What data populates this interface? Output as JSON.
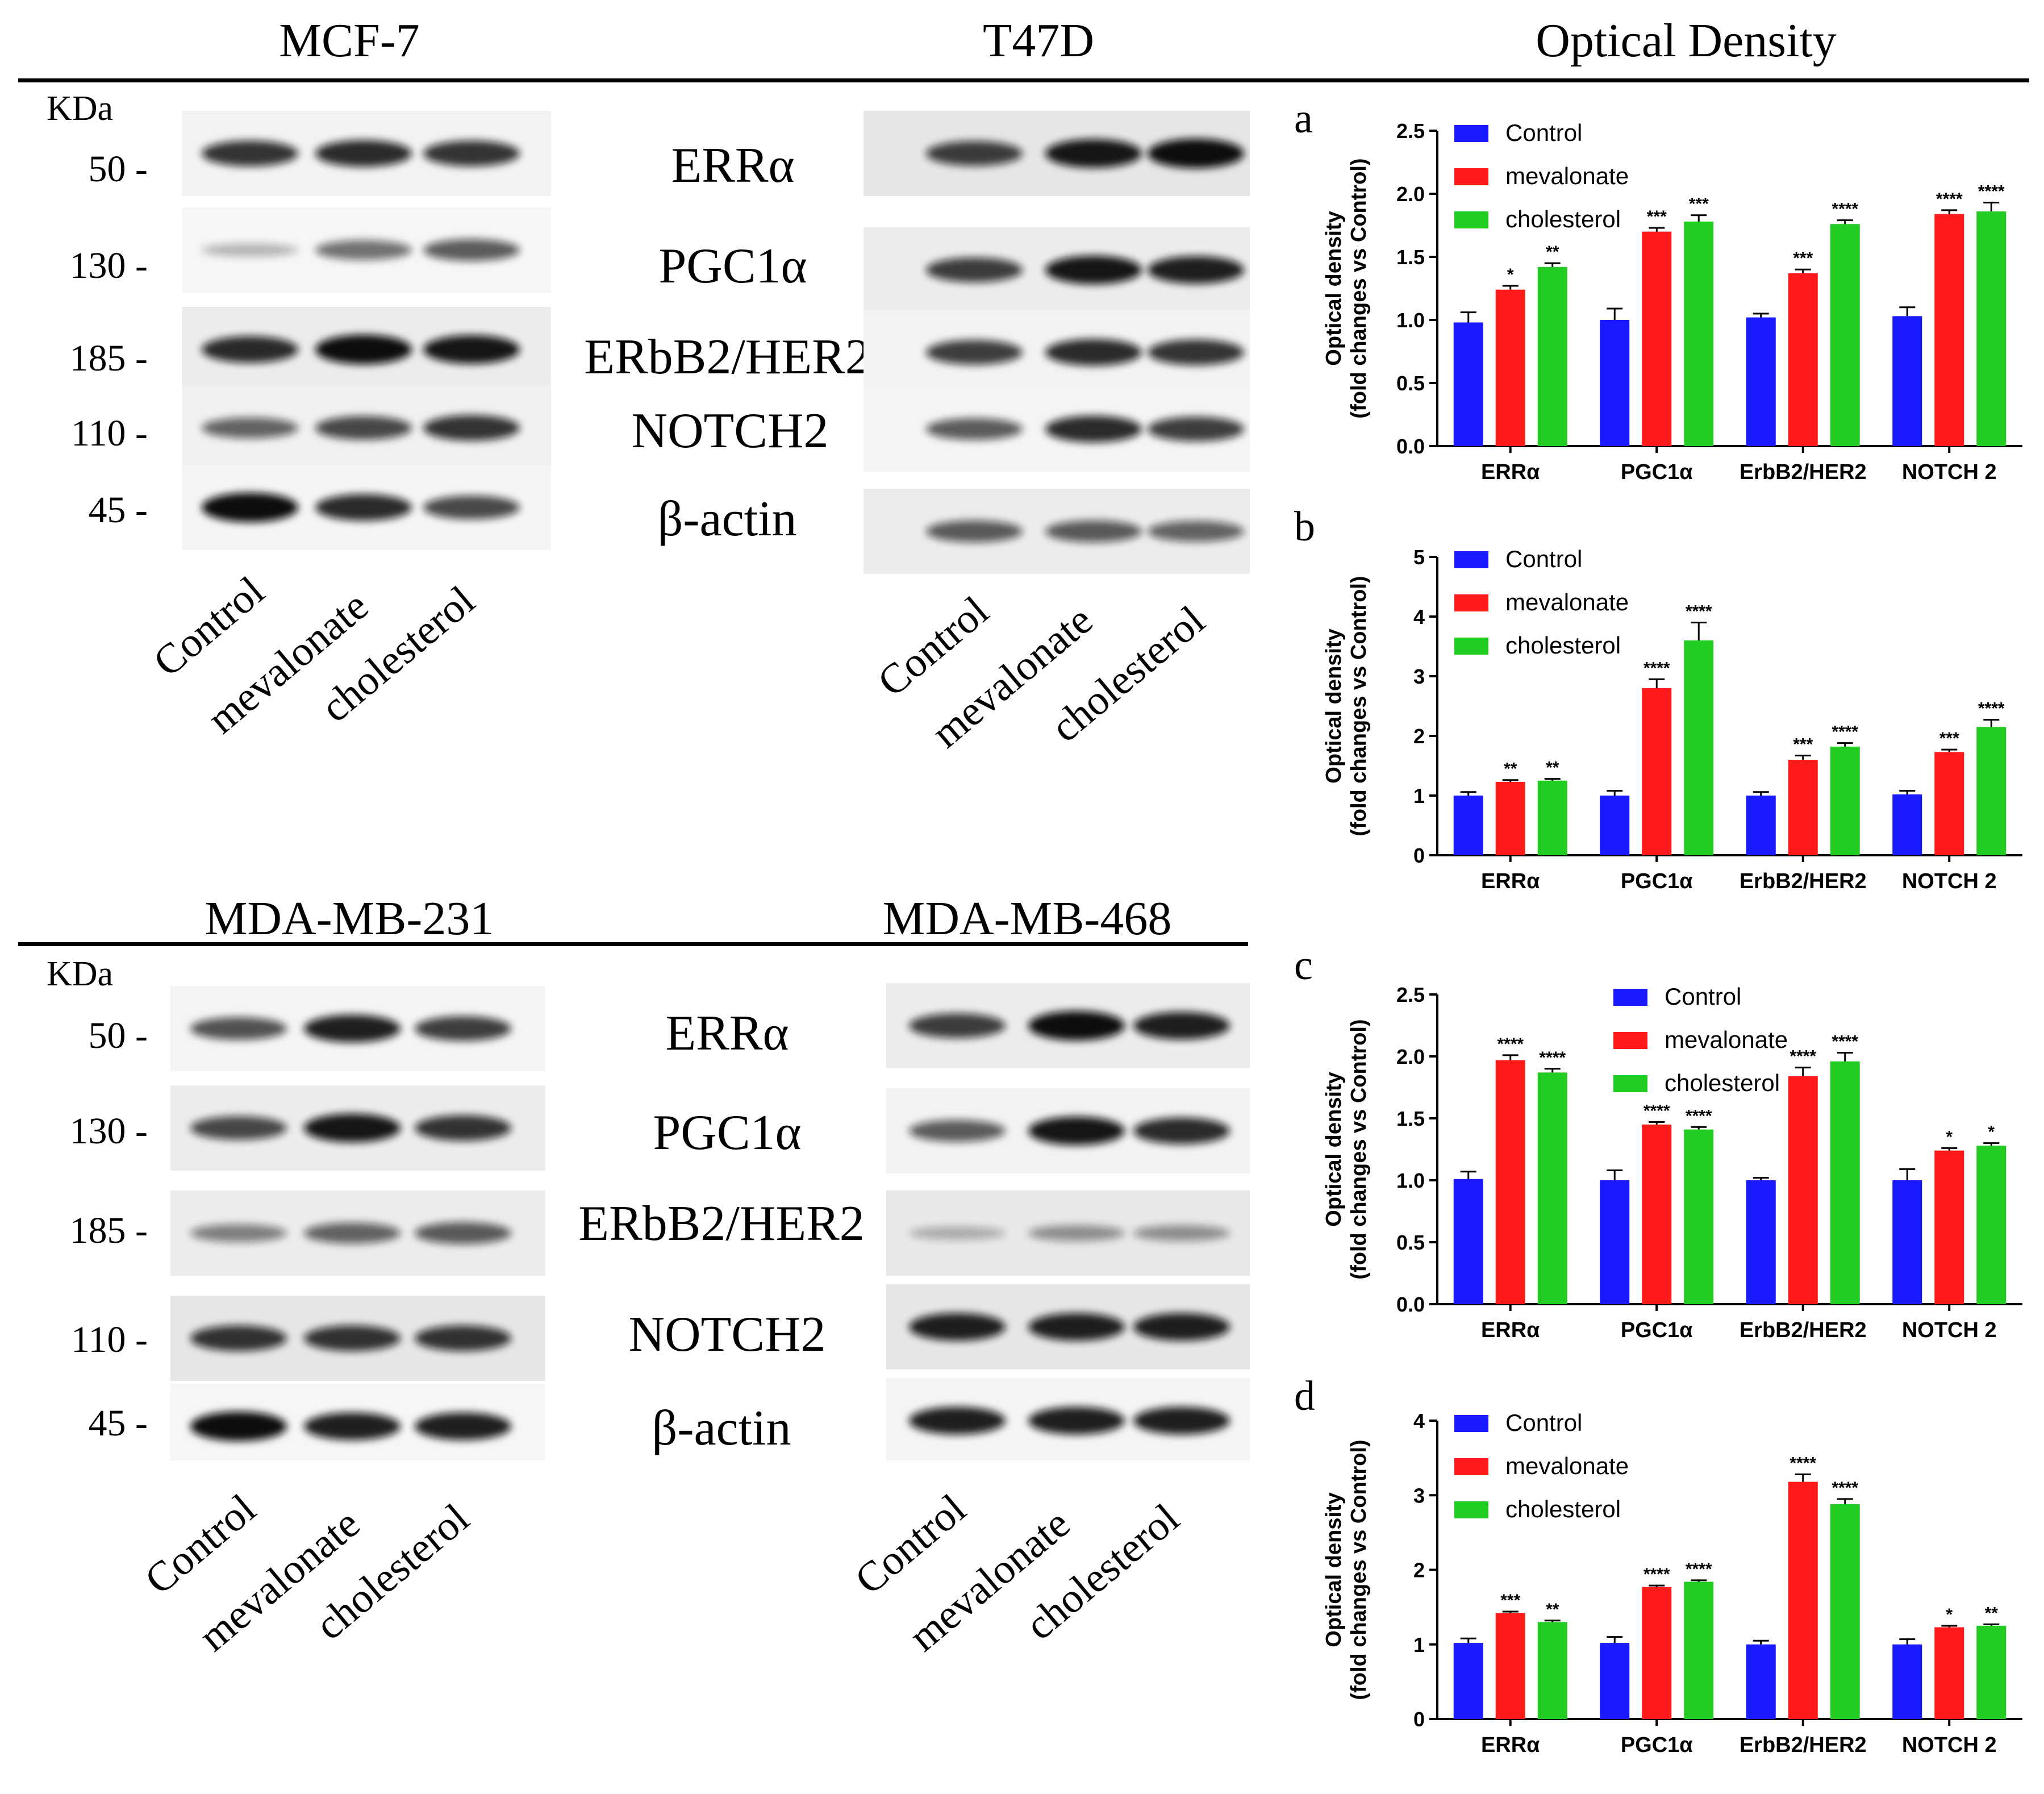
{
  "headers": {
    "mcf7": "MCF-7",
    "t47d": "T47D",
    "optical_density": "Optical Density",
    "mdamb231": "MDA-MB-231",
    "mdamb468": "MDA-MB-468"
  },
  "kda_label": "KDa",
  "mw_markers": [
    "50 -",
    "130 -",
    "185 -",
    "110 -",
    "45 -"
  ],
  "protein_labels": [
    "ERRα",
    "PGC1α",
    "ERbB2/HER2",
    "NOTCH2",
    "β-actin"
  ],
  "lane_labels": [
    "Control",
    "mevalonate",
    "cholesterol"
  ],
  "colors": {
    "control": "#1a1aff",
    "mevalonate": "#ff1a1a",
    "cholesterol": "#22cc22",
    "band": "#111111"
  },
  "blots": {
    "note": "relative band intensities per lane (Control, mevalonate, cholesterol), estimated from the picture",
    "mcf7": [
      [
        0.8,
        0.85,
        0.8
      ],
      [
        0.15,
        0.5,
        0.6
      ],
      [
        0.85,
        1.0,
        0.95
      ],
      [
        0.55,
        0.7,
        0.8
      ],
      [
        1.0,
        0.85,
        0.7
      ]
    ],
    "t47d": [
      [
        0.75,
        0.95,
        1.0
      ],
      [
        0.75,
        0.95,
        0.9
      ],
      [
        0.75,
        0.85,
        0.8
      ],
      [
        0.6,
        0.85,
        0.75
      ],
      [
        0.6,
        0.6,
        0.55
      ]
    ],
    "mdamb231": [
      [
        0.65,
        0.9,
        0.75
      ],
      [
        0.7,
        0.95,
        0.8
      ],
      [
        0.4,
        0.55,
        0.6
      ],
      [
        0.8,
        0.8,
        0.8
      ],
      [
        1.0,
        0.9,
        0.9
      ]
    ],
    "mdamb468": [
      [
        0.75,
        1.0,
        0.9
      ],
      [
        0.6,
        0.95,
        0.85
      ],
      [
        0.15,
        0.3,
        0.3
      ],
      [
        0.9,
        0.9,
        0.9
      ],
      [
        0.9,
        0.9,
        0.9
      ]
    ]
  },
  "chart_data": [
    {
      "panel": "a",
      "type": "bar",
      "ylabel": "Optical density\n(fold changes vs Control)",
      "ylim": [
        0,
        2.5
      ],
      "yticks": [
        "0.0",
        "0.5",
        "1.0",
        "1.5",
        "2.0",
        "2.5"
      ],
      "ytick_values": [
        0,
        0.5,
        1.0,
        1.5,
        2.0,
        2.5
      ],
      "categories": [
        "ERRα",
        "PGC1α",
        "ErbB2/HER2",
        "NOTCH 2"
      ],
      "series": [
        {
          "name": "Control",
          "values": [
            0.98,
            1.0,
            1.02,
            1.03
          ],
          "errors": [
            0.08,
            0.09,
            0.03,
            0.07
          ],
          "sig": [
            "",
            "",
            "",
            ""
          ]
        },
        {
          "name": "mevalonate",
          "values": [
            1.24,
            1.7,
            1.37,
            1.84
          ],
          "errors": [
            0.03,
            0.03,
            0.03,
            0.03
          ],
          "sig": [
            "*",
            "***",
            "***",
            "****"
          ]
        },
        {
          "name": "cholesterol",
          "values": [
            1.42,
            1.78,
            1.76,
            1.86
          ],
          "errors": [
            0.03,
            0.05,
            0.03,
            0.07
          ],
          "sig": [
            "**",
            "***",
            "****",
            "****"
          ]
        }
      ],
      "legend": "top-left"
    },
    {
      "panel": "b",
      "type": "bar",
      "ylabel": "Optical density\n(fold changes vs Control)",
      "ylim": [
        0,
        5
      ],
      "yticks": [
        "0",
        "1",
        "2",
        "3",
        "4",
        "5"
      ],
      "ytick_values": [
        0,
        1,
        2,
        3,
        4,
        5
      ],
      "categories": [
        "ERRα",
        "PGC1α",
        "ErbB2/HER2",
        "NOTCH 2"
      ],
      "series": [
        {
          "name": "Control",
          "values": [
            1.0,
            1.0,
            1.0,
            1.02
          ],
          "errors": [
            0.06,
            0.08,
            0.06,
            0.06
          ],
          "sig": [
            "",
            "",
            "",
            ""
          ]
        },
        {
          "name": "mevalonate",
          "values": [
            1.23,
            2.8,
            1.6,
            1.73
          ],
          "errors": [
            0.03,
            0.15,
            0.07,
            0.04
          ],
          "sig": [
            "**",
            "****",
            "***",
            "***"
          ]
        },
        {
          "name": "cholesterol",
          "values": [
            1.25,
            3.6,
            1.82,
            2.15
          ],
          "errors": [
            0.03,
            0.3,
            0.06,
            0.12
          ],
          "sig": [
            "**",
            "****",
            "****",
            "****"
          ]
        }
      ],
      "legend": "top-left"
    },
    {
      "panel": "c",
      "type": "bar",
      "ylabel": "Optical density\n(fold changes vs Control)",
      "ylim": [
        0,
        2.5
      ],
      "yticks": [
        "0.0",
        "0.5",
        "1.0",
        "1.5",
        "2.0",
        "2.5"
      ],
      "ytick_values": [
        0,
        0.5,
        1.0,
        1.5,
        2.0,
        2.5
      ],
      "categories": [
        "ERRα",
        "PGC1α",
        "ErbB2/HER2",
        "NOTCH 2"
      ],
      "series": [
        {
          "name": "Control",
          "values": [
            1.01,
            1.0,
            1.0,
            1.0
          ],
          "errors": [
            0.06,
            0.08,
            0.02,
            0.09
          ],
          "sig": [
            "",
            "",
            "",
            ""
          ]
        },
        {
          "name": "mevalonate",
          "values": [
            1.97,
            1.45,
            1.84,
            1.24
          ],
          "errors": [
            0.04,
            0.02,
            0.07,
            0.02
          ],
          "sig": [
            "****",
            "****",
            "****",
            "*"
          ]
        },
        {
          "name": "cholesterol",
          "values": [
            1.87,
            1.41,
            1.96,
            1.28
          ],
          "errors": [
            0.03,
            0.02,
            0.07,
            0.02
          ],
          "sig": [
            "****",
            "****",
            "****",
            "*"
          ]
        }
      ],
      "legend": "top-center"
    },
    {
      "panel": "d",
      "type": "bar",
      "ylabel": "Optical density\n(fold changes vs Control)",
      "ylim": [
        0,
        4
      ],
      "yticks": [
        "0",
        "1",
        "2",
        "3",
        "4"
      ],
      "ytick_values": [
        0,
        1,
        2,
        3,
        4
      ],
      "categories": [
        "ERRα",
        "PGC1α",
        "ErbB2/HER2",
        "NOTCH 2"
      ],
      "series": [
        {
          "name": "Control",
          "values": [
            1.02,
            1.02,
            1.0,
            1.0
          ],
          "errors": [
            0.06,
            0.08,
            0.05,
            0.07
          ],
          "sig": [
            "",
            "",
            "",
            ""
          ]
        },
        {
          "name": "mevalonate",
          "values": [
            1.42,
            1.77,
            3.18,
            1.23
          ],
          "errors": [
            0.02,
            0.02,
            0.1,
            0.02
          ],
          "sig": [
            "***",
            "****",
            "****",
            "*"
          ]
        },
        {
          "name": "cholesterol",
          "values": [
            1.3,
            1.84,
            2.88,
            1.25
          ],
          "errors": [
            0.02,
            0.02,
            0.07,
            0.02
          ],
          "sig": [
            "**",
            "****",
            "****",
            "**"
          ]
        }
      ],
      "legend": "top-left"
    }
  ]
}
